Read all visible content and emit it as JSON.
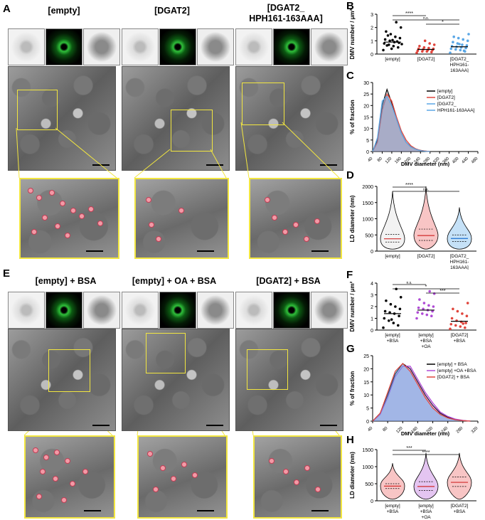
{
  "panel_letters": {
    "A": "A",
    "B": "B",
    "C": "C",
    "D": "D",
    "E": "E",
    "F": "F",
    "G": "G",
    "H": "H"
  },
  "panelA": {
    "titles": [
      "[empty]",
      "[DGAT2]",
      "[DGAT2_",
      "HPH161-163AAA]"
    ]
  },
  "panelE": {
    "titles": [
      "[empty] + BSA",
      "[empty] + OA + BSA",
      "[DGAT2] + BSA"
    ]
  },
  "colors": {
    "zoom_frame": "#f2e640",
    "dmv_marker": "#f29aa6",
    "empty": "#000000",
    "dgat2": "#e0453c",
    "mutant": "#5aa7e6",
    "oa": "#b04bd6"
  },
  "chart_data": [
    {
      "panel": "B",
      "type": "scatter",
      "ylabel": "DMV number / μm²",
      "ylim": [
        0,
        3
      ],
      "yticks": [
        "0",
        "1",
        "2",
        "3"
      ],
      "categories": [
        "[empty]",
        "[DGAT2]",
        "[DGAT2_ HPH161- 163AAA]"
      ],
      "series": [
        {
          "values": [
            0.3,
            0.5,
            0.6,
            0.7,
            0.8,
            0.85,
            0.9,
            1.0,
            1.1,
            1.2,
            1.3,
            1.5,
            1.7,
            2.0,
            2.4,
            0.4,
            0.65,
            0.75,
            0.95,
            1.05,
            1.4
          ]
        },
        {
          "values": [
            0.1,
            0.15,
            0.2,
            0.2,
            0.25,
            0.3,
            0.3,
            0.35,
            0.4,
            0.4,
            0.45,
            0.5,
            0.6,
            0.7,
            0.8,
            1.0
          ]
        },
        {
          "values": [
            0.1,
            0.2,
            0.3,
            0.35,
            0.4,
            0.45,
            0.5,
            0.55,
            0.6,
            0.65,
            0.7,
            0.8,
            0.9,
            1.0,
            1.1,
            1.2,
            1.3,
            1.5,
            0.25,
            0.75
          ]
        }
      ],
      "means": [
        0.9,
        0.35,
        0.55
      ],
      "significance": [
        {
          "from": 0,
          "to": 1,
          "label": "****"
        },
        {
          "from": 0,
          "to": 2,
          "label": "n.s."
        },
        {
          "from": 1,
          "to": 2,
          "label": "*"
        }
      ]
    },
    {
      "panel": "C",
      "type": "area",
      "ylabel": "% of fraction",
      "xlabel": "DMV diameter (nm)",
      "xticks": [
        "40",
        "80",
        "120",
        "160",
        "200",
        "240",
        "280",
        "320",
        "360",
        "400",
        "440",
        "480"
      ],
      "yticks": [
        "0",
        "5",
        "10",
        "15",
        "20",
        "25",
        "30"
      ],
      "ylim": [
        0,
        30
      ],
      "legend": [
        "[empty]",
        "[DGAT2]",
        "[DGAT2_",
        "HPH161-163AAA]"
      ],
      "x": [
        40,
        60,
        80,
        100,
        120,
        140,
        160,
        180,
        200,
        220,
        240,
        260,
        280
      ],
      "series": [
        {
          "name": "[empty]",
          "values": [
            0,
            5,
            20,
            27,
            21,
            14,
            8,
            4,
            2,
            1,
            0.5,
            0.2,
            0
          ]
        },
        {
          "name": "[DGAT2]",
          "values": [
            0,
            4,
            18,
            25,
            22,
            15,
            9,
            5,
            2.5,
            1.2,
            0.5,
            0.2,
            0
          ]
        },
        {
          "name": "[DGAT2_HPH161-163AAA]",
          "values": [
            0,
            6,
            22,
            24,
            20,
            14,
            8,
            4,
            2,
            1,
            0.4,
            0.1,
            0
          ]
        }
      ]
    },
    {
      "panel": "D",
      "type": "violin",
      "ylabel": "LD diameter (nm)",
      "ylim": [
        0,
        2000
      ],
      "yticks": [
        "0",
        "500",
        "1000",
        "1500",
        "2000"
      ],
      "categories": [
        "[empty]",
        "[DGAT2]",
        "[DGAT2_ HPH161- 163AAA]"
      ],
      "medians": [
        380,
        480,
        390
      ],
      "q1": [
        280,
        330,
        300
      ],
      "q3": [
        520,
        680,
        500
      ],
      "max": [
        1850,
        2000,
        1350
      ],
      "significance": [
        {
          "from": 0,
          "to": 1,
          "label": "****"
        },
        {
          "from": 0,
          "to": 2,
          "label": "n.s."
        }
      ]
    },
    {
      "panel": "F",
      "type": "scatter",
      "ylabel": "DMV number / μm²",
      "ylim": [
        0,
        4
      ],
      "yticks": [
        "0",
        "1",
        "2",
        "3",
        "4"
      ],
      "categories": [
        "[empty] +BSA",
        "[empty] +BSA +OA",
        "[DGAT2] +BSA"
      ],
      "series": [
        {
          "values": [
            0.2,
            0.4,
            0.6,
            0.8,
            1.0,
            1.2,
            1.4,
            1.5,
            1.6,
            1.8,
            2.0,
            2.2,
            2.5,
            2.8,
            3.5,
            0.9
          ]
        },
        {
          "values": [
            1.0,
            1.2,
            1.3,
            1.4,
            1.5,
            1.6,
            1.7,
            1.8,
            1.9,
            2.0,
            2.1,
            2.3,
            2.6,
            3.1,
            3.3
          ]
        },
        {
          "values": [
            0.1,
            0.2,
            0.3,
            0.4,
            0.5,
            0.6,
            0.7,
            0.8,
            1.0,
            1.2,
            1.4,
            1.6,
            1.8,
            2.3,
            0.55
          ]
        }
      ],
      "means": [
        1.4,
        1.7,
        0.75
      ],
      "significance": [
        {
          "from": 0,
          "to": 1,
          "label": "n.s."
        },
        {
          "from": 0,
          "to": 2,
          "label": "*"
        },
        {
          "from": 1,
          "to": 2,
          "label": "***"
        }
      ]
    },
    {
      "panel": "G",
      "type": "area",
      "ylabel": "% of fraction",
      "xlabel": "DMV diameter (nm)",
      "xticks": [
        "40",
        "80",
        "120",
        "160",
        "200",
        "240",
        "280",
        "320"
      ],
      "yticks": [
        "0",
        "5",
        "10",
        "15",
        "20",
        "25"
      ],
      "ylim": [
        0,
        25
      ],
      "legend": [
        "[empty] + BSA",
        "[empty] +OA +BSA",
        "[DGAT2] + BSA"
      ],
      "x": [
        40,
        60,
        80,
        100,
        120,
        140,
        160,
        180,
        200,
        220,
        240,
        260,
        280,
        300
      ],
      "series": [
        {
          "name": "[empty] + BSA",
          "values": [
            0,
            3,
            10,
            18,
            22,
            20,
            15,
            10,
            6,
            3,
            1.5,
            0.6,
            0.2,
            0
          ]
        },
        {
          "name": "[empty] +OA +BSA",
          "values": [
            0,
            2.5,
            9,
            17,
            21,
            21,
            16,
            11,
            7,
            3.5,
            1.8,
            0.8,
            0.3,
            0
          ]
        },
        {
          "name": "[DGAT2] + BSA",
          "values": [
            0,
            3,
            11,
            19,
            22,
            19,
            14,
            9,
            5,
            2.5,
            1.2,
            0.5,
            0.2,
            0
          ]
        }
      ]
    },
    {
      "panel": "H",
      "type": "violin",
      "ylabel": "LD diameter (nm)",
      "ylim": [
        0,
        1500
      ],
      "yticks": [
        "0",
        "500",
        "1000",
        "1500"
      ],
      "categories": [
        "[empty] +BSA",
        "[empty] +BSA +OA",
        "[DGAT2] +BSA"
      ],
      "medians": [
        430,
        420,
        540
      ],
      "q1": [
        360,
        300,
        420
      ],
      "q3": [
        500,
        560,
        700
      ],
      "max": [
        1100,
        1400,
        1400
      ],
      "significance": [
        {
          "from": 0,
          "to": 1,
          "label": "***"
        },
        {
          "from": 0,
          "to": 2,
          "label": "****"
        }
      ]
    }
  ]
}
